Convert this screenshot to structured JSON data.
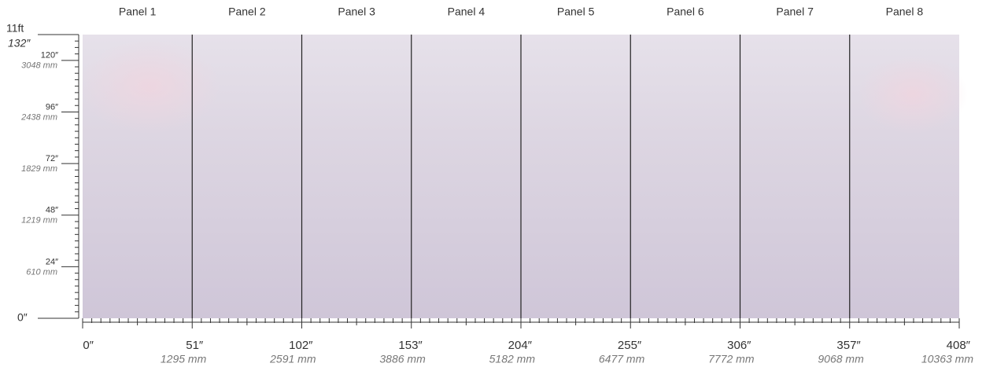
{
  "panels": [
    "Panel 1",
    "Panel 2",
    "Panel 3",
    "Panel 4",
    "Panel 5",
    "Panel 6",
    "Panel 7",
    "Panel 8"
  ],
  "height_label": "11ft",
  "x_axis": {
    "ticks": [
      {
        "value": 0,
        "label": "0″"
      },
      {
        "value": 51,
        "label": "51″",
        "mm": "1295 mm"
      },
      {
        "value": 102,
        "label": "102″",
        "mm": "2591 mm"
      },
      {
        "value": 153,
        "label": "153″",
        "mm": "3886 mm"
      },
      {
        "value": 204,
        "label": "204″",
        "mm": "5182 mm"
      },
      {
        "value": 255,
        "label": "255″",
        "mm": "6477 mm"
      },
      {
        "value": 306,
        "label": "306″",
        "mm": "7772 mm"
      },
      {
        "value": 357,
        "label": "357″",
        "mm": "9068 mm"
      },
      {
        "value": 408,
        "label": "408″",
        "mm": "10363 mm"
      }
    ]
  },
  "y_axis": {
    "ticks": [
      {
        "value": 0,
        "label": "0″"
      },
      {
        "value": 24,
        "label": "24″",
        "mm": "610 mm"
      },
      {
        "value": 48,
        "label": "48″",
        "mm": "1219 mm"
      },
      {
        "value": 72,
        "label": "72″",
        "mm": "1829 mm"
      },
      {
        "value": 96,
        "label": "96″",
        "mm": "2438 mm"
      },
      {
        "value": 120,
        "label": "120″",
        "mm": "3048 mm"
      },
      {
        "value": 132,
        "label": "132″"
      }
    ]
  }
}
